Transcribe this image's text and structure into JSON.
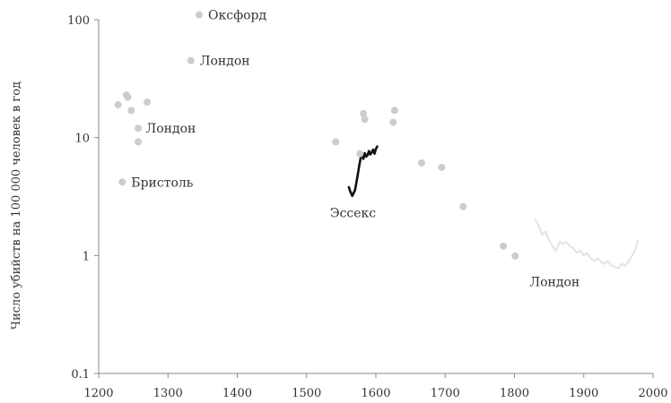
{
  "chart_data": {
    "type": "scatter",
    "title": "",
    "xlabel": "",
    "ylabel": "Число убийств на 100 000 человек в год",
    "xlim": [
      1200,
      2000
    ],
    "ylim": [
      0.1,
      100
    ],
    "yscale": "log",
    "grid": false,
    "x_ticks": [
      "1200",
      "1300",
      "1400",
      "1500",
      "1600",
      "1700",
      "1800",
      "1900",
      "2000"
    ],
    "y_ticks": [
      "0.1",
      "1",
      "10",
      "100"
    ],
    "point_color": "#cccccc",
    "essex_color": "#111111",
    "london_line_color": "#e5e5e5",
    "points": [
      {
        "x": 1345,
        "y": 110
      },
      {
        "x": 1333,
        "y": 45
      },
      {
        "x": 1240,
        "y": 23
      },
      {
        "x": 1242,
        "y": 22
      },
      {
        "x": 1228,
        "y": 19
      },
      {
        "x": 1247,
        "y": 17
      },
      {
        "x": 1270,
        "y": 20
      },
      {
        "x": 1257,
        "y": 12
      },
      {
        "x": 1257,
        "y": 9.2
      },
      {
        "x": 1234,
        "y": 4.2
      },
      {
        "x": 1542,
        "y": 9.2
      },
      {
        "x": 1582,
        "y": 16
      },
      {
        "x": 1584,
        "y": 14.3
      },
      {
        "x": 1627,
        "y": 17
      },
      {
        "x": 1625,
        "y": 13.5
      },
      {
        "x": 1577,
        "y": 7.3
      },
      {
        "x": 1666,
        "y": 6.1
      },
      {
        "x": 1695,
        "y": 5.6
      },
      {
        "x": 1726,
        "y": 2.6
      },
      {
        "x": 1784,
        "y": 1.2
      },
      {
        "x": 1801,
        "y": 0.99
      }
    ],
    "series": [
      {
        "x": [
          1561,
          1563,
          1565,
          1566,
          1568,
          1570,
          1572,
          1574,
          1576,
          1578,
          1580,
          1582,
          1584,
          1586,
          1588,
          1590,
          1592,
          1594,
          1596,
          1598,
          1600,
          1602
        ],
        "y": [
          3.8,
          3.5,
          3.3,
          3.2,
          3.4,
          3.6,
          4.2,
          4.9,
          5.8,
          6.7,
          7.2,
          6.6,
          7.4,
          6.9,
          7.1,
          7.7,
          7.2,
          7.5,
          7.9,
          7.3,
          8.0,
          8.4
        ]
      },
      {
        "x": [
          1830,
          1835,
          1840,
          1845,
          1850,
          1855,
          1860,
          1865,
          1870,
          1875,
          1880,
          1885,
          1890,
          1895,
          1900,
          1905,
          1910,
          1915,
          1920,
          1925,
          1930,
          1935,
          1940,
          1945,
          1950,
          1955,
          1960,
          1965,
          1970,
          1975,
          1978
        ],
        "y": [
          2.0,
          1.8,
          1.5,
          1.6,
          1.35,
          1.2,
          1.1,
          1.3,
          1.25,
          1.3,
          1.2,
          1.15,
          1.05,
          1.1,
          1.0,
          1.05,
          0.95,
          0.9,
          0.95,
          0.88,
          0.85,
          0.9,
          0.82,
          0.8,
          0.78,
          0.85,
          0.82,
          0.9,
          1.0,
          1.15,
          1.35
        ]
      }
    ],
    "annotations": [
      {
        "text": "Оксфорд",
        "x": 1358,
        "y": 110,
        "anchor": "start"
      },
      {
        "text": "Лондон",
        "x": 1346,
        "y": 45,
        "anchor": "start"
      },
      {
        "text": "Лондон",
        "x": 1268,
        "y": 12,
        "anchor": "start"
      },
      {
        "text": "Бристоль",
        "x": 1247,
        "y": 4.2,
        "anchor": "start"
      },
      {
        "text": "Эссекс",
        "x": 1567,
        "y": 2.3,
        "anchor": "middle"
      },
      {
        "text": "Лондон",
        "x": 1858,
        "y": 0.6,
        "anchor": "middle"
      }
    ]
  }
}
